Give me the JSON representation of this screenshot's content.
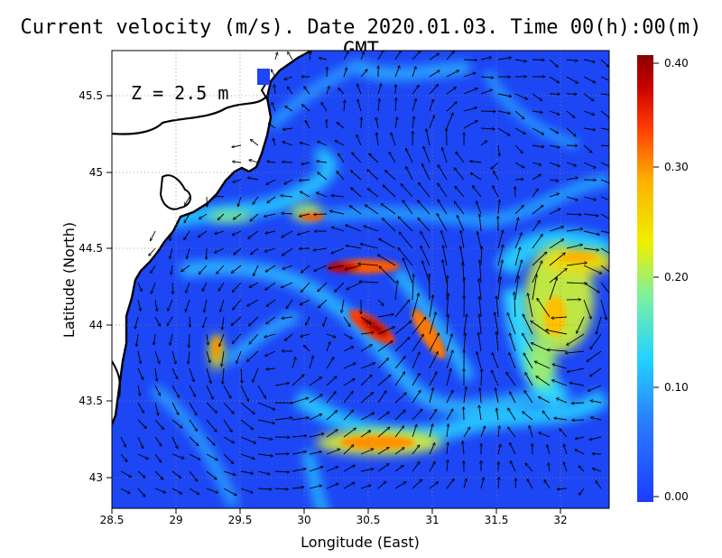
{
  "title": "Current velocity (m/s). Date 2020.01.03. Time 00(h):00(m) GMT",
  "depth_label": "Z = 2.5 m",
  "xlabel": "Longitude (East)",
  "ylabel": "Latitude (North)",
  "x_ticks": [
    "28.5",
    "29",
    "29.5",
    "30",
    "30.5",
    "31",
    "31.5",
    "32"
  ],
  "y_ticks": [
    "43",
    "43.5",
    "44",
    "44.5",
    "45",
    "45.5"
  ],
  "colorbar": {
    "ticks": [
      "0.00",
      "0.10",
      "0.20",
      "0.30",
      "0.40"
    ],
    "min": 0.0,
    "max": 0.4,
    "colors": [
      "#1c3cff",
      "#2a7dff",
      "#22d3ff",
      "#7cf0a0",
      "#eef000",
      "#ffb000",
      "#ff3a00",
      "#c80000",
      "#8a0000"
    ]
  },
  "chart_data": {
    "type": "vector-field-map",
    "xlim": [
      28.5,
      32.4
    ],
    "ylim": [
      42.8,
      45.8
    ],
    "grid": true,
    "colorbar_range": [
      0.0,
      0.4
    ],
    "high_speed_zones": [
      {
        "lon": 30.4,
        "lat": 44.4,
        "speed": 0.38
      },
      {
        "lon": 30.5,
        "lat": 44.05,
        "speed": 0.4
      },
      {
        "lon": 30.8,
        "lat": 43.95,
        "speed": 0.34
      },
      {
        "lon": 32.1,
        "lat": 44.5,
        "speed": 0.27
      },
      {
        "lon": 31.85,
        "lat": 44.15,
        "speed": 0.25
      },
      {
        "lon": 30.4,
        "lat": 43.25,
        "speed": 0.26
      },
      {
        "lon": 29.95,
        "lat": 44.7,
        "speed": 0.33
      },
      {
        "lon": 29.3,
        "lat": 43.9,
        "speed": 0.28
      }
    ]
  }
}
